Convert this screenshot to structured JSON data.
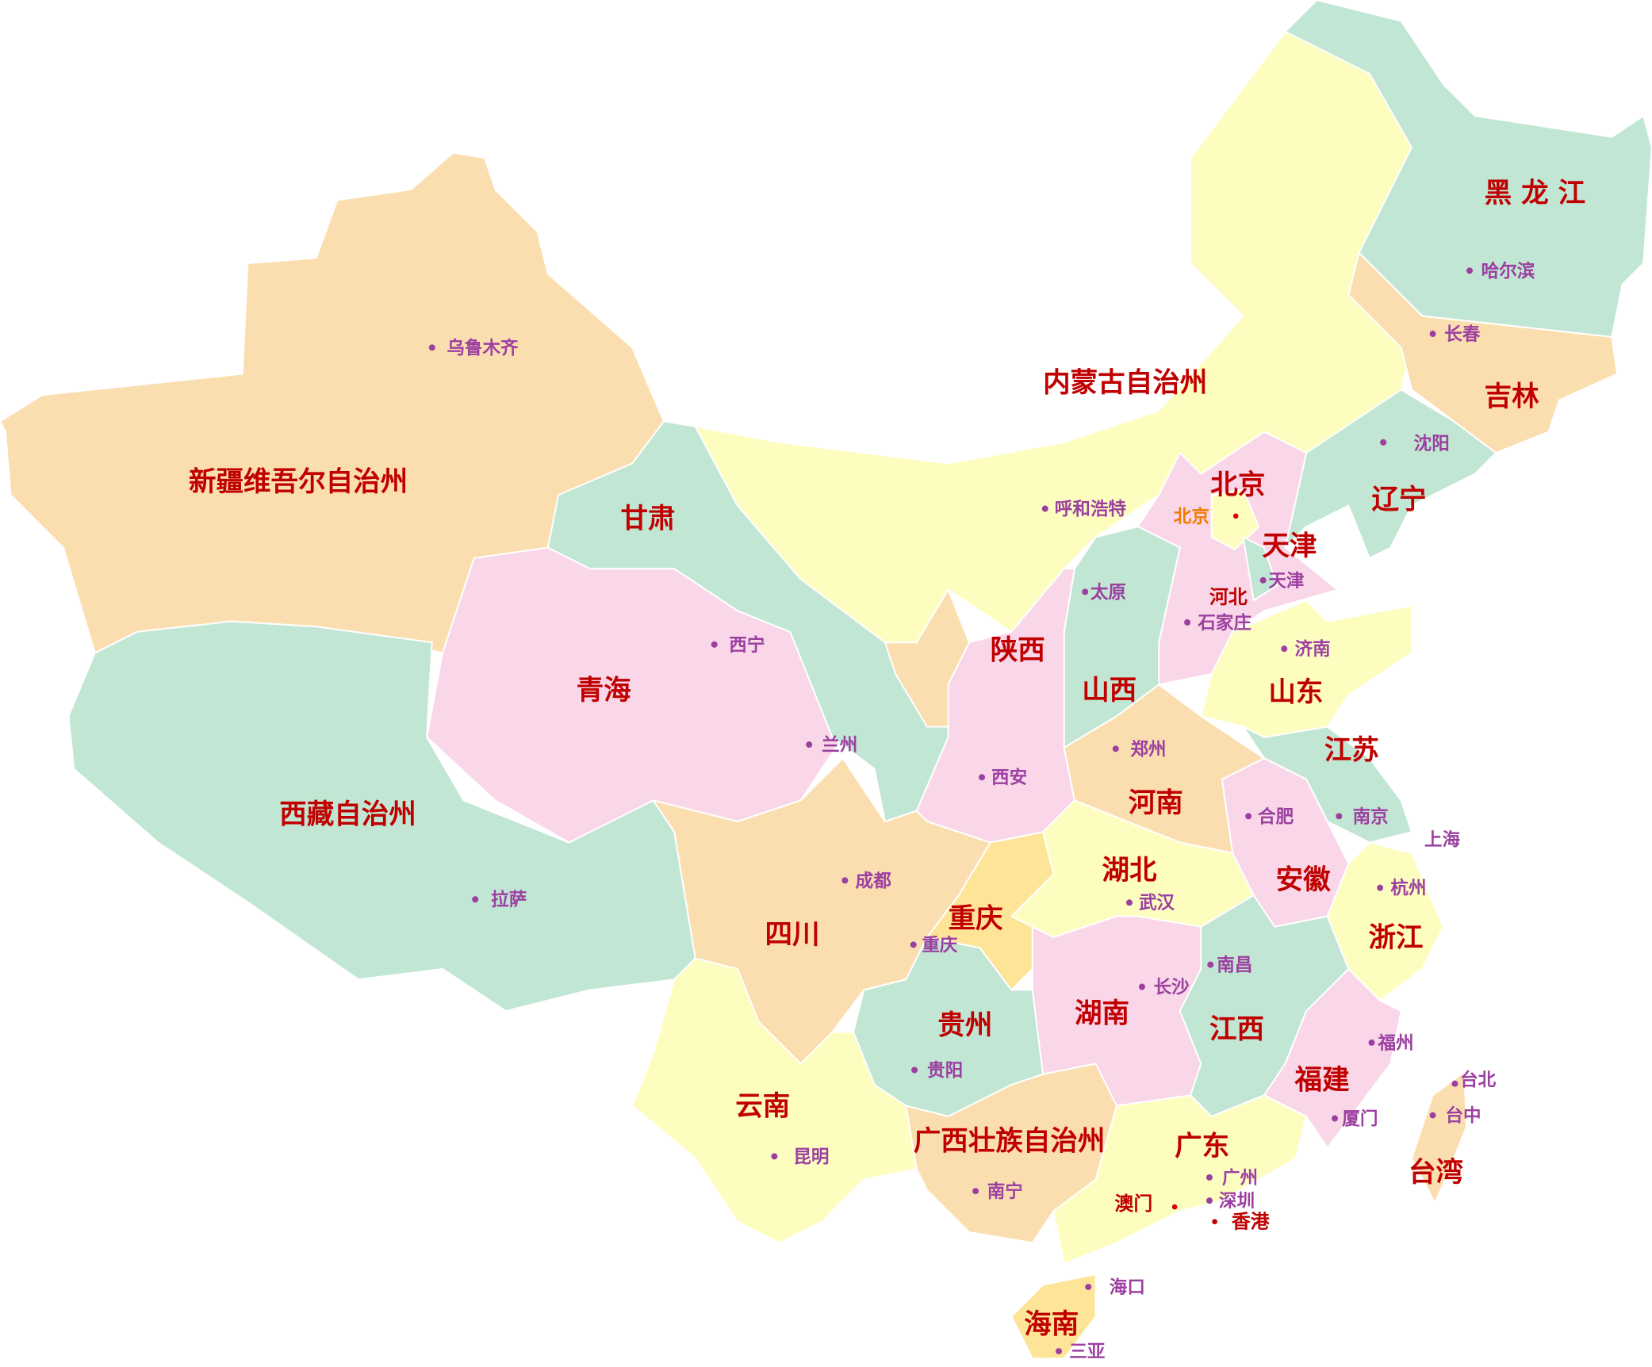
{
  "palette": {
    "orange": "#fbdeb0",
    "green": "#c1e6d3",
    "yellow": "#fefdc0",
    "pink": "#f9d6e8",
    "gold": "#fde496",
    "province_label": "#c00000",
    "city_label": "#9b3fa0",
    "capital_label": "#f07b00"
  },
  "provinces": {
    "xinjiang": "新疆维吾尔自治州",
    "xizang": "西藏自治州",
    "qinghai": "青海",
    "gansu": "甘肃",
    "neimenggu": "内蒙古自治州",
    "heilongjiang": "黑 龙 江",
    "jilin": "吉林",
    "liaoning": "辽宁",
    "beijing": "北京",
    "tianjin": "天津",
    "hebei": "河北",
    "shanxi": "山西",
    "shaanxi": "陕西",
    "shandong": "山东",
    "jiangsu": "江苏",
    "henan": "河南",
    "hubei": "湖北",
    "anhui": "安徽",
    "zhejiang": "浙江",
    "chongqing": "重庆",
    "sichuan": "四川",
    "guizhou": "贵州",
    "hunan": "湖南",
    "jiangxi": "江西",
    "fujian": "福建",
    "yunnan": "云南",
    "guangxi": "广西壮族自治州",
    "guangdong": "广东",
    "taiwan": "台湾",
    "hainan": "海南",
    "aomen": "澳门",
    "xianggang": "香港"
  },
  "cities": {
    "wulumuqi": "乌鲁木齐",
    "haerbin": "哈尔滨",
    "changchun": "长春",
    "shenyang": "沈阳",
    "huhehaote": "呼和浩特",
    "beijing": "北京",
    "tianjin": "天津",
    "taiyuan": "太原",
    "shijiazhuang": "石家庄",
    "jinan": "济南",
    "xining": "西宁",
    "lanzhou": "兰州",
    "zhengzhou": "郑州",
    "xian": "西安",
    "hefei": "合肥",
    "nanjing": "南京",
    "shanghai": "上海",
    "hangzhou": "杭州",
    "chengdu": "成都",
    "wuhan": "武汉",
    "lasa": "拉萨",
    "chongqing": "重庆",
    "nanchang": "南昌",
    "changsha": "长沙",
    "fuzhou": "福州",
    "taibei": "台北",
    "taizhong": "台中",
    "xiamen": "厦门",
    "guiyang": "贵阳",
    "kunming": "昆明",
    "nanning": "南宁",
    "guangzhou": "广州",
    "shenzhen": "深圳",
    "haikou": "海口",
    "sanya": "三亚"
  }
}
